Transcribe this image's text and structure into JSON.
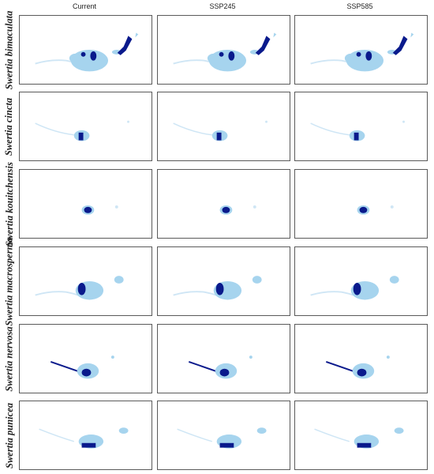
{
  "columns": [
    "Current",
    "SSP245",
    "SSP585"
  ],
  "species": [
    "Swertia bimaculata",
    "Swertia cincta",
    "Swertia kouitchensis",
    "Swertia macrosperma",
    "Swertia nervosa",
    "Swertia punicea"
  ],
  "legend_colors": {
    "low_suitability": "#a6d4ee",
    "high_suitability": "#0a1a8c",
    "faint_outline": "#cfe6f5"
  }
}
